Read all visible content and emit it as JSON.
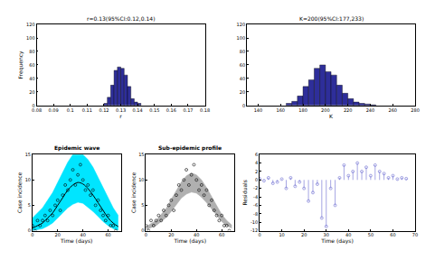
{
  "chart_data": [
    {
      "type": "histogram",
      "title": "r=0.13(95%CI:0.12,0.14)",
      "x_label": "r",
      "y_label": "Frequency",
      "bins": [
        0.12,
        0.122,
        0.124,
        0.126,
        0.128,
        0.13,
        0.132,
        0.134,
        0.136,
        0.138,
        0.14,
        0.142
      ],
      "counts": [
        3,
        12,
        30,
        52,
        57,
        55,
        45,
        28,
        10,
        5,
        3
      ],
      "color": "#2e2e9a",
      "xlim": [
        0.08,
        0.18
      ],
      "xticks": [
        0.08,
        0.09,
        0.1,
        0.11,
        0.12,
        0.13,
        0.14,
        0.15,
        0.16,
        0.17,
        0.18
      ],
      "ylim": [
        0,
        120
      ],
      "yticks": [
        0,
        20,
        40,
        60,
        80,
        100,
        120
      ]
    },
    {
      "type": "histogram",
      "title": "K=200(95%CI:177,233)",
      "x_label": "K",
      "y_label": "",
      "bins": [
        165,
        170,
        175,
        180,
        185,
        190,
        195,
        200,
        205,
        210,
        215,
        220,
        225,
        230,
        235,
        240,
        245
      ],
      "counts": [
        3,
        6,
        14,
        28,
        38,
        55,
        60,
        50,
        45,
        30,
        18,
        10,
        5,
        3,
        2,
        1
      ],
      "color": "#2e2e9a",
      "xlim": [
        130,
        280
      ],
      "xticks": [
        140,
        160,
        180,
        200,
        220,
        240,
        260,
        280
      ],
      "ylim": [
        0,
        120
      ],
      "yticks": [
        0,
        20,
        40,
        60,
        80,
        100,
        120
      ]
    },
    {
      "type": "line",
      "title": "Epidemic wave",
      "x_label": "Time (days)",
      "y_label": "Case incidence",
      "series": [
        {
          "type": "band",
          "color": "#00e5ff",
          "x": [
            0,
            4,
            8,
            12,
            16,
            20,
            24,
            28,
            32,
            36,
            40,
            44,
            48,
            52,
            56,
            60,
            64,
            68
          ],
          "lower": [
            0,
            0.2,
            0.4,
            0.9,
            1.5,
            2.5,
            3.5,
            4.5,
            5.2,
            5.6,
            5.4,
            4.6,
            3.8,
            2.8,
            1.8,
            1,
            0.4,
            0.1
          ],
          "upper": [
            2.5,
            3.5,
            4.5,
            6,
            7.5,
            9.5,
            11.5,
            13.5,
            15,
            15,
            15,
            14,
            12.5,
            10.5,
            8.5,
            6.5,
            4.5,
            3
          ]
        },
        {
          "type": "line",
          "color": "#000000",
          "line_style": "solid",
          "x": [
            0,
            4,
            8,
            12,
            16,
            20,
            24,
            28,
            32,
            36,
            40,
            44,
            48,
            52,
            56,
            60,
            64,
            68
          ],
          "values": [
            0.5,
            1,
            1.5,
            2.5,
            3.5,
            5,
            6.5,
            8,
            9,
            9.5,
            9.2,
            8.3,
            7,
            5.5,
            4,
            2.5,
            1.5,
            0.8
          ]
        },
        {
          "type": "scatter",
          "color": "#000000",
          "marker": "circle-open",
          "x": [
            0,
            2,
            4,
            6,
            8,
            10,
            12,
            14,
            16,
            18,
            20,
            22,
            24,
            26,
            28,
            30,
            32,
            34,
            36,
            38,
            40,
            42,
            44,
            46,
            48,
            50,
            52,
            54,
            56,
            58,
            60,
            62,
            64,
            66
          ],
          "values": [
            1,
            0,
            2,
            1,
            2,
            3,
            2,
            4,
            3,
            5,
            6,
            4,
            7,
            9,
            8,
            10,
            12,
            9,
            11,
            13,
            10,
            8,
            9,
            7,
            8,
            5,
            6,
            4,
            3,
            2,
            3,
            1,
            1,
            0
          ]
        }
      ],
      "xlim": [
        0,
        70
      ],
      "xticks": [
        0,
        20,
        40,
        60
      ],
      "ylim": [
        0,
        15
      ],
      "yticks": [
        0,
        5,
        10,
        15
      ]
    },
    {
      "type": "line",
      "title": "Sub-epidemic profile",
      "x_label": "Time (days)",
      "y_label": "Case incidence",
      "series": [
        {
          "type": "band",
          "color": "#b0b0b0",
          "x": [
            0,
            4,
            8,
            12,
            16,
            20,
            24,
            28,
            32,
            36,
            40,
            44,
            48,
            52,
            56,
            60,
            64,
            68
          ],
          "lower": [
            0.2,
            0.6,
            1,
            1.8,
            2.6,
            3.8,
            5,
            6.4,
            7.2,
            7.6,
            7.4,
            6.6,
            5.5,
            4.2,
            3,
            1.8,
            1,
            0.5
          ],
          "upper": [
            0.8,
            1.4,
            2,
            3.2,
            4.4,
            6.2,
            8,
            9.6,
            10.8,
            11.4,
            11,
            10,
            8.5,
            6.8,
            5,
            3.2,
            2,
            1.1
          ]
        },
        {
          "type": "scatter",
          "color": "#000000",
          "marker": "circle-open",
          "x": [
            0,
            2,
            4,
            6,
            8,
            10,
            12,
            14,
            16,
            18,
            20,
            22,
            24,
            26,
            28,
            30,
            32,
            34,
            36,
            38,
            40,
            42,
            44,
            46,
            48,
            50,
            52,
            54,
            56,
            58,
            60,
            62,
            64,
            66
          ],
          "values": [
            1,
            0,
            2,
            1,
            2,
            3,
            2,
            4,
            3,
            5,
            6,
            4,
            7,
            9,
            8,
            10,
            12,
            9,
            11,
            13,
            10,
            8,
            9,
            7,
            8,
            5,
            6,
            4,
            3,
            2,
            3,
            1,
            1,
            0
          ]
        }
      ],
      "xlim": [
        0,
        70
      ],
      "xticks": [
        0,
        20,
        40,
        60
      ],
      "ylim": [
        0,
        15
      ],
      "yticks": [
        0,
        5,
        10,
        15
      ]
    },
    {
      "type": "stem",
      "title": "",
      "x_label": "Time (days)",
      "y_label": "Residuals",
      "color": "#6a6ad0",
      "marker": "circle-open",
      "x": [
        0,
        2,
        4,
        6,
        8,
        10,
        12,
        14,
        16,
        18,
        20,
        22,
        24,
        26,
        28,
        30,
        32,
        34,
        36,
        38,
        40,
        42,
        44,
        46,
        48,
        50,
        52,
        54,
        56,
        58,
        60,
        62,
        64,
        66
      ],
      "values": [
        0.3,
        -0.2,
        0.5,
        -0.8,
        -0.5,
        0.2,
        -2,
        0.5,
        -1.5,
        -0.5,
        -2,
        -5,
        -3,
        -1,
        -9,
        -11,
        -2,
        -6,
        0.5,
        3.5,
        1,
        2,
        4,
        2,
        3,
        1,
        3.5,
        2,
        1.5,
        0.5,
        1,
        0.2,
        0.5,
        0.3
      ],
      "xlim": [
        0,
        70
      ],
      "xticks": [
        0,
        10,
        20,
        30,
        40,
        50,
        60,
        70
      ],
      "ylim": [
        -12,
        6
      ],
      "yticks": [
        -12,
        -10,
        -8,
        -6,
        -4,
        -2,
        0,
        2,
        4,
        6
      ]
    }
  ]
}
